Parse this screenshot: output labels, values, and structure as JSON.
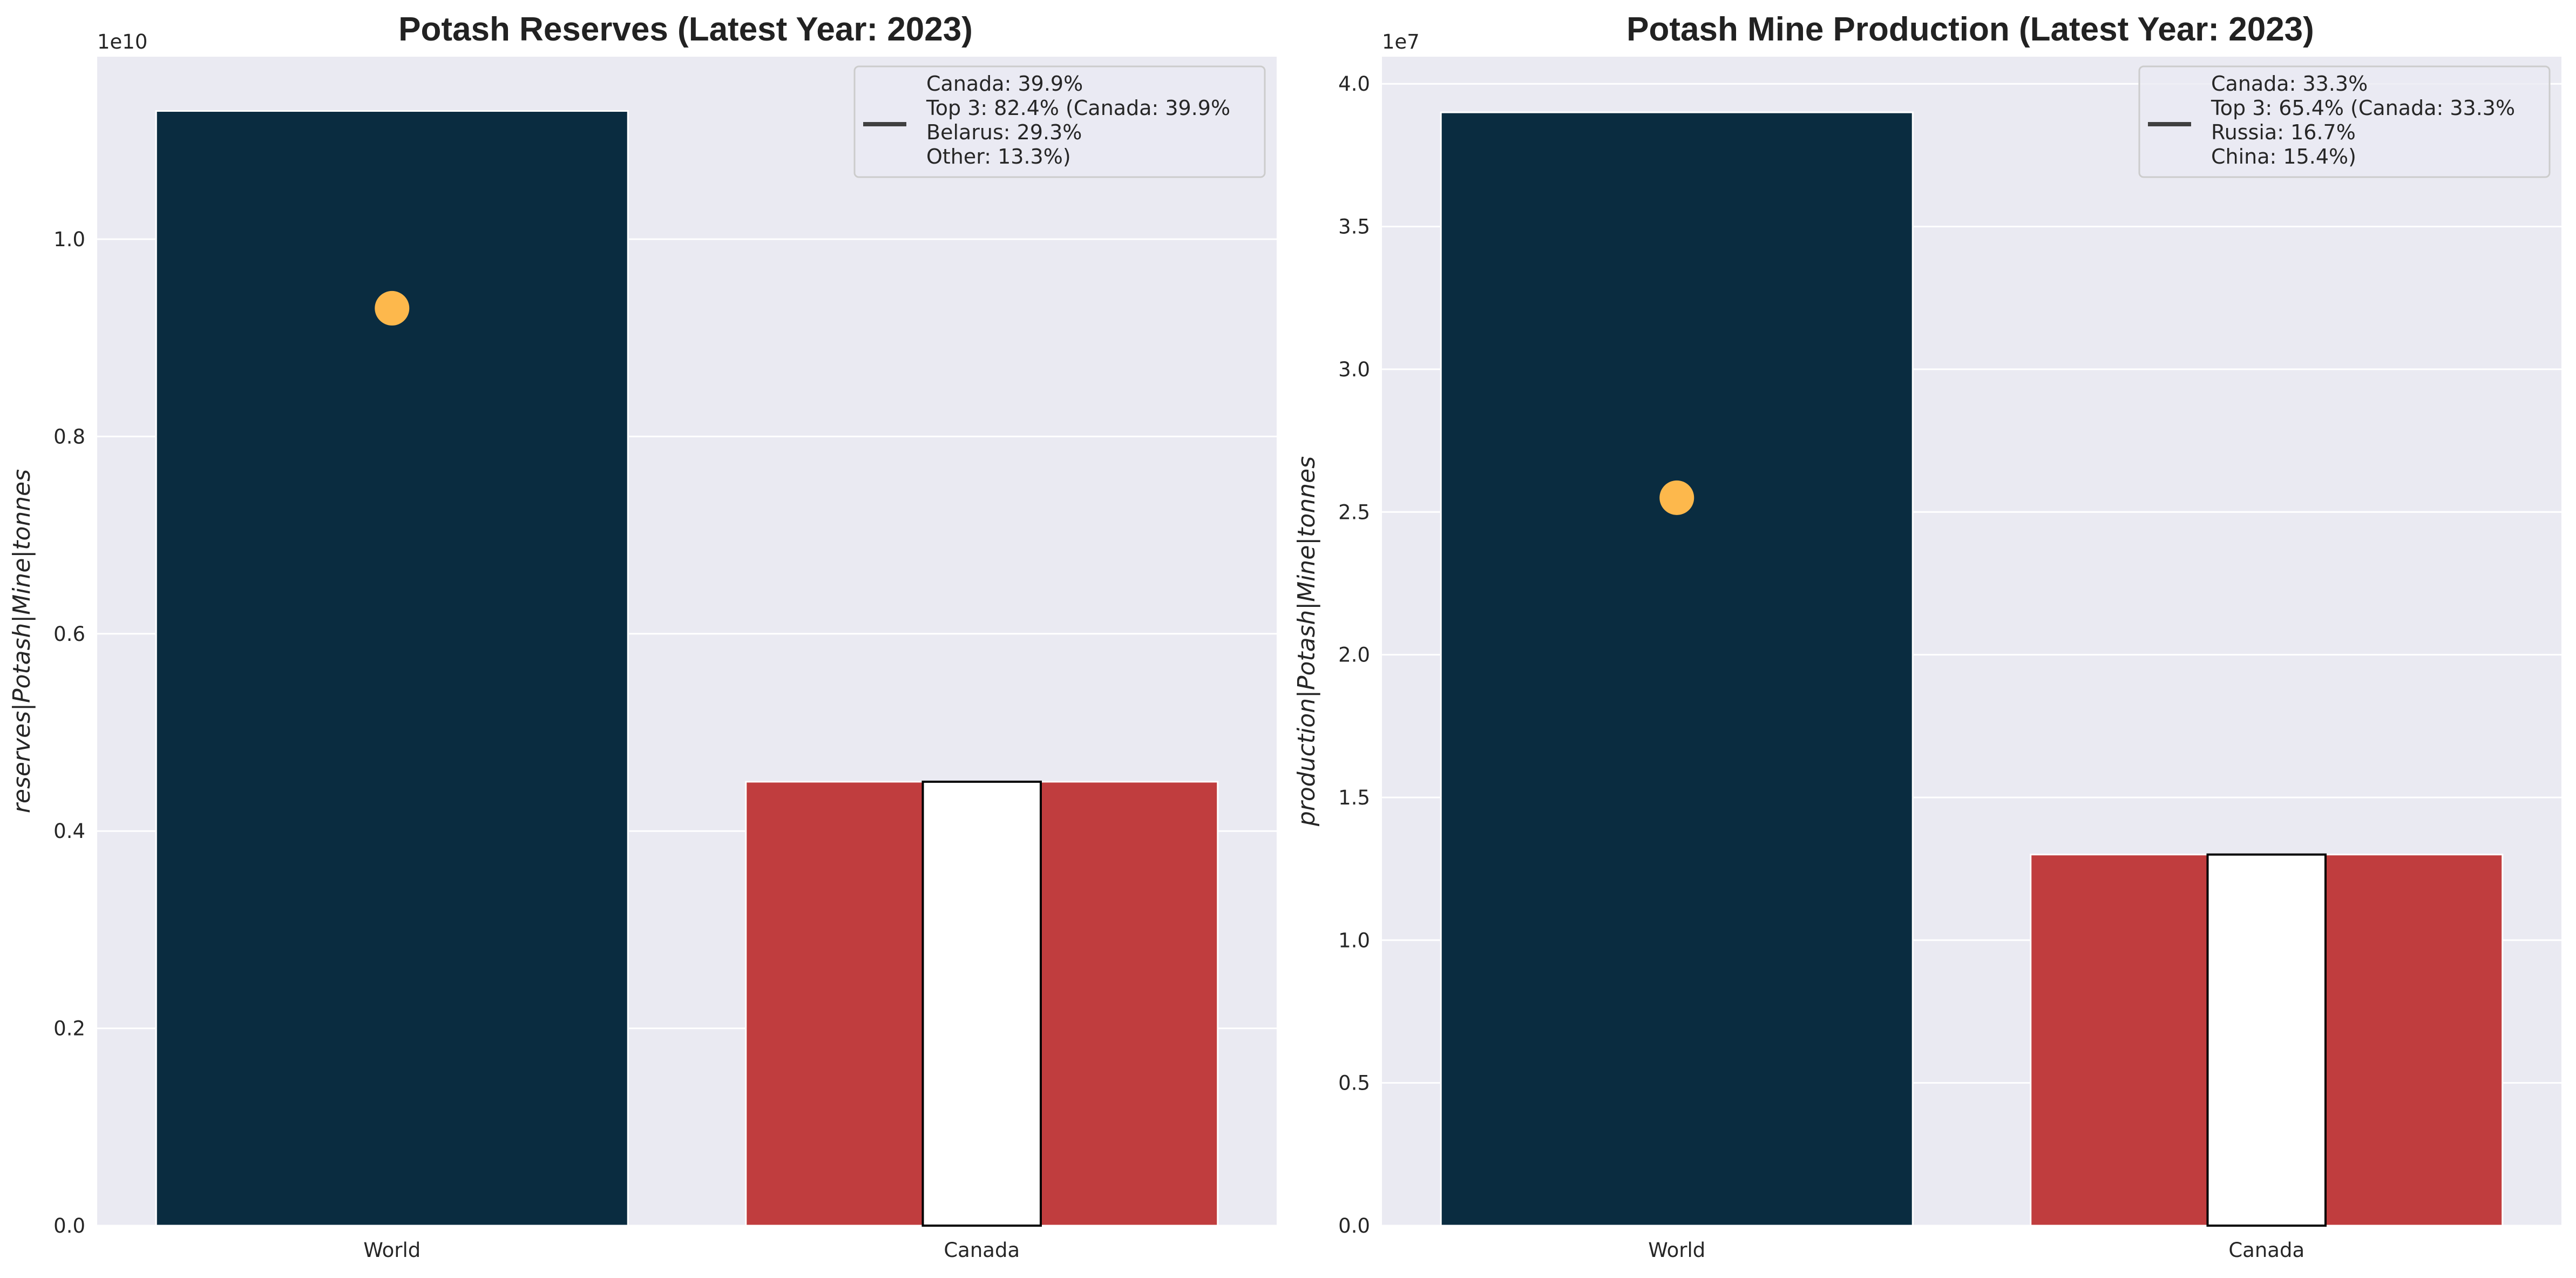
{
  "colors": {
    "background": "#EAEAF2",
    "grid": "#FFFFFF",
    "world_bar": "#0A2C40",
    "country_bar": "#C03D3E",
    "country_inner_bar": "#FFFFFF",
    "point_marker": "#FDB84C",
    "legend_line": "#404040"
  },
  "chart_data": [
    {
      "type": "bar",
      "title": "Potash Reserves (Latest Year: 2023)",
      "ylabel": "reserves|Potash|Mine|tonnes",
      "xlabel": "",
      "offset_label": "1e10",
      "categories": [
        "World",
        "Canada"
      ],
      "values": [
        11300000000,
        4500000000
      ],
      "inner_bar": {
        "category": "Canada",
        "value": 4500000000
      },
      "marker": {
        "category": "World",
        "value": 9300000000
      },
      "ylim": [
        0,
        11850000000
      ],
      "yticks": [
        0,
        2000000000,
        4000000000,
        6000000000,
        8000000000,
        10000000000
      ],
      "ytick_labels": [
        "0.0",
        "0.2",
        "0.4",
        "0.6",
        "0.8",
        "1.0"
      ],
      "grid": true,
      "legend_position": "top-right",
      "legend_lines": [
        "Canada: 39.9%",
        "Top 3: 82.4% (Canada: 39.9%",
        "Belarus: 29.3%",
        "Other: 13.3%)"
      ]
    },
    {
      "type": "bar",
      "title": "Potash Mine Production (Latest Year: 2023)",
      "ylabel": "production|Potash|Mine|tonnes",
      "xlabel": "",
      "offset_label": "1e7",
      "categories": [
        "World",
        "Canada"
      ],
      "values": [
        39000000,
        13000000
      ],
      "inner_bar": {
        "category": "Canada",
        "value": 13000000
      },
      "marker": {
        "category": "World",
        "value": 25500000
      },
      "ylim": [
        0,
        40950000
      ],
      "yticks": [
        0,
        5000000,
        10000000,
        15000000,
        20000000,
        25000000,
        30000000,
        35000000,
        40000000
      ],
      "ytick_labels": [
        "0.0",
        "0.5",
        "1.0",
        "1.5",
        "2.0",
        "2.5",
        "3.0",
        "3.5",
        "4.0"
      ],
      "grid": true,
      "legend_position": "top-right",
      "legend_lines": [
        "Canada: 33.3%",
        "Top 3: 65.4% (Canada: 33.3%",
        "Russia: 16.7%",
        "China: 15.4%)"
      ]
    }
  ]
}
